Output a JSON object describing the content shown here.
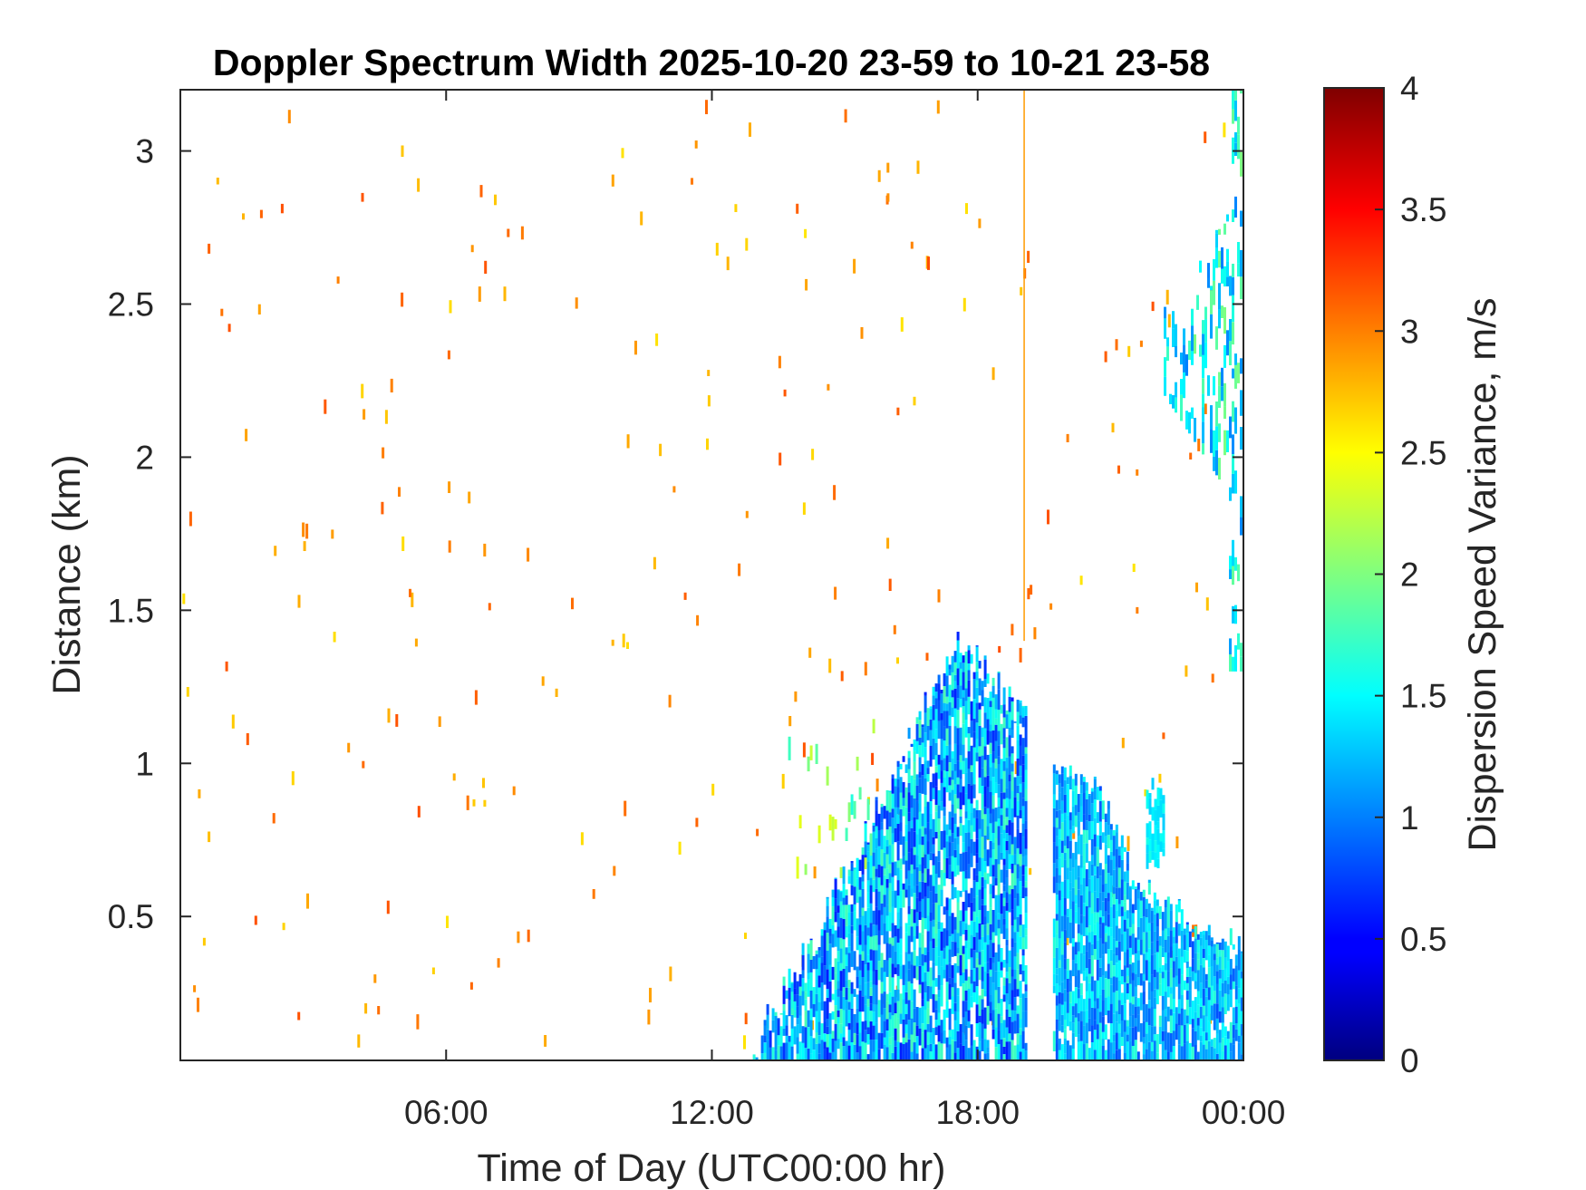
{
  "chart_data": {
    "type": "heatmap",
    "title": "Doppler Spectrum Width 2025-10-20 23-59 to 10-21 23-58",
    "xlabel": "Time of Day (UTC00:00 hr)",
    "ylabel": "Distance (km)",
    "xlim_hours": [
      0,
      24
    ],
    "ylim_km": [
      0.03,
      3.2
    ],
    "x_ticks": [
      {
        "hours": 6,
        "label": "06:00"
      },
      {
        "hours": 12,
        "label": "12:00"
      },
      {
        "hours": 18,
        "label": "18:00"
      },
      {
        "hours": 24,
        "label": "00:00"
      }
    ],
    "y_ticks": [
      {
        "km": 0.5,
        "label": "0.5"
      },
      {
        "km": 1,
        "label": "1"
      },
      {
        "km": 1.5,
        "label": "1.5"
      },
      {
        "km": 2,
        "label": "2"
      },
      {
        "km": 2.5,
        "label": "2.5"
      },
      {
        "km": 3,
        "label": "3"
      }
    ],
    "colorbar": {
      "label": "Dispersion Speed Variance, m/s",
      "colormap": "jet",
      "range": [
        0,
        4
      ],
      "ticks": [
        {
          "value": 0,
          "label": "0"
        },
        {
          "value": 0.5,
          "label": "0.5"
        },
        {
          "value": 1,
          "label": "1"
        },
        {
          "value": 1.5,
          "label": "1.5"
        },
        {
          "value": 2,
          "label": "2"
        },
        {
          "value": 2.5,
          "label": "2.5"
        },
        {
          "value": 3,
          "label": "3"
        },
        {
          "value": 3.5,
          "label": "3.5"
        },
        {
          "value": 4,
          "label": "4"
        }
      ]
    },
    "grid": false,
    "echo_regions": [
      {
        "name": "main-convective-echo",
        "start_hours": 12.8,
        "end_hours": 19.1,
        "max_top_km": 1.4,
        "peak_hours": 17.5,
        "value_range": [
          0.6,
          1.8
        ]
      },
      {
        "name": "evening-lower-echo",
        "start_hours": 19.7,
        "end_hours": 24.0,
        "max_top_km": 1.0,
        "value_range": [
          0.8,
          1.7
        ]
      },
      {
        "name": "upper-echo-near-midnight",
        "start_hours": 22.2,
        "end_hours": 24.0,
        "bottom_km": 1.3,
        "top_km": 3.2,
        "value_range": [
          1.0,
          2.0
        ]
      },
      {
        "name": "small-plume",
        "start_hours": 21.8,
        "end_hours": 22.2,
        "bottom_km": 0.65,
        "top_km": 1.0,
        "value_range": [
          1.3,
          1.6
        ]
      }
    ],
    "artifacts": [
      {
        "name": "vertical-line",
        "hours": 19.05,
        "value": 2.9
      }
    ]
  }
}
